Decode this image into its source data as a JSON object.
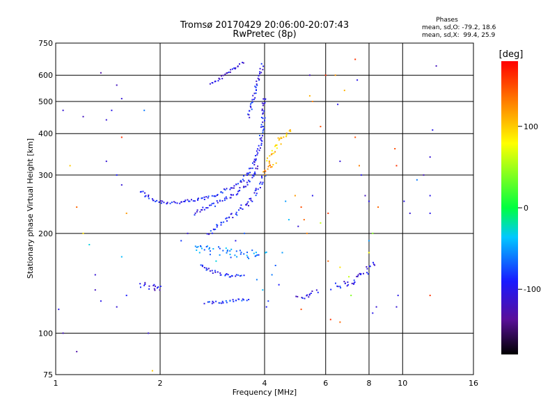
{
  "chart_data": {
    "type": "scatter",
    "title": "Tromsø 20170429 20:06:00-20:07:43",
    "subtitle": "RwPretec (8p)",
    "xlabel": "Frequency [MHz]",
    "ylabel": "Stationary phase Virtual Height [km]",
    "x_scale": "log",
    "y_scale": "log",
    "xlim": [
      1,
      16
    ],
    "ylim": [
      75,
      750
    ],
    "x_ticks": [
      1,
      2,
      4,
      6,
      8,
      10,
      16
    ],
    "x_tick_labels": [
      "1",
      "2",
      "4",
      "6",
      "8",
      "10",
      "16"
    ],
    "y_ticks": [
      75,
      100,
      200,
      300,
      400,
      500,
      600,
      750
    ],
    "y_tick_labels": [
      "75",
      "100",
      "200",
      "300",
      "400",
      "500",
      "600",
      "750"
    ],
    "grid": true,
    "phase_info": {
      "title": "Phases",
      "line_o": "mean, sd,O: -79.2, 18.6",
      "line_x": "mean, sd,X:  99.4, 25.9"
    },
    "colorbar": {
      "label": "[deg]",
      "range": [
        -180,
        180
      ],
      "ticks": [
        100,
        0,
        -100
      ],
      "tick_labels": [
        "100",
        "0",
        "-100"
      ]
    },
    "traces": [
      {
        "name": "",
        "segments": [
          [
            [
              1.75,
              268
            ],
            [
              1.85,
              257
            ],
            [
              1.95,
              250
            ],
            [
              2.1,
              248
            ],
            [
              2.3,
              248
            ],
            [
              2.5,
              251
            ],
            [
              2.7,
              256
            ],
            [
              2.9,
              262
            ],
            [
              3.1,
              270
            ],
            [
              3.3,
              280
            ],
            [
              3.5,
              295
            ],
            [
              3.7,
              320
            ],
            [
              3.85,
              355
            ],
            [
              3.95,
              420
            ],
            [
              4.0,
              520
            ]
          ]
        ],
        "phase": -95,
        "spread": 0.012
      },
      {
        "name": "",
        "segments": [
          [
            [
              2.75,
              200
            ],
            [
              2.95,
              212
            ],
            [
              3.15,
              222
            ],
            [
              3.35,
              232
            ],
            [
              3.55,
              245
            ],
            [
              3.75,
              262
            ],
            [
              3.9,
              285
            ],
            [
              4.0,
              300
            ]
          ]
        ],
        "phase": -90,
        "spread": 0.015
      },
      {
        "name": "",
        "segments": [
          [
            [
              2.5,
              230
            ],
            [
              2.8,
              242
            ],
            [
              3.1,
              255
            ],
            [
              3.4,
              270
            ],
            [
              3.65,
              290
            ],
            [
              3.85,
              320
            ]
          ]
        ],
        "phase": -100,
        "spread": 0.012
      },
      {
        "name": "",
        "segments": [
          [
            [
              2.8,
              565
            ],
            [
              3.0,
              590
            ],
            [
              3.2,
              620
            ],
            [
              3.35,
              640
            ],
            [
              3.5,
              660
            ]
          ]
        ],
        "phase": -100,
        "spread": 0.008
      },
      {
        "name": "",
        "segments": [
          [
            [
              3.6,
              450
            ],
            [
              3.7,
              500
            ],
            [
              3.8,
              560
            ],
            [
              3.9,
              610
            ],
            [
              3.95,
              650
            ]
          ]
        ],
        "phase": -95,
        "spread": 0.01
      },
      {
        "name": "",
        "segments": [
          [
            [
              4.05,
              320
            ],
            [
              4.2,
              350
            ],
            [
              4.4,
              380
            ],
            [
              4.6,
              400
            ],
            [
              4.8,
              410
            ]
          ]
        ],
        "phase": 100,
        "spread": 0.02
      },
      {
        "name": "",
        "segments": [
          [
            [
              4.0,
              300
            ],
            [
              4.1,
              315
            ],
            [
              4.3,
              330
            ]
          ]
        ],
        "phase": 125,
        "spread": 0.015
      },
      {
        "name": "",
        "segments": [
          [
            [
              2.6,
              160
            ],
            [
              2.9,
              152
            ],
            [
              3.2,
              148
            ],
            [
              3.5,
              150
            ]
          ]
        ],
        "phase": -90,
        "spread": 0.012
      },
      {
        "name": "",
        "segments": [
          [
            [
              2.7,
              123
            ],
            [
              3.0,
              124
            ],
            [
              3.3,
              126
            ],
            [
              3.6,
              127
            ]
          ]
        ],
        "phase": -85,
        "spread": 0.01
      },
      {
        "name": "",
        "segments": [
          [
            [
              1.75,
              140
            ],
            [
              1.9,
              138
            ],
            [
              2.05,
              136
            ]
          ]
        ],
        "phase": -105,
        "spread": 0.02
      },
      {
        "name": "",
        "segments": [
          [
            [
              5.0,
              128
            ],
            [
              5.3,
              130
            ],
            [
              5.7,
              134
            ]
          ]
        ],
        "phase": -100,
        "spread": 0.015
      },
      {
        "name": "",
        "segments": [
          [
            [
              6.3,
              138
            ],
            [
              6.7,
              140
            ],
            [
              7.2,
              142
            ],
            [
              7.6,
              148
            ],
            [
              8.0,
              158
            ],
            [
              8.3,
              165
            ]
          ]
        ],
        "phase": -100,
        "spread": 0.02
      },
      {
        "name": "",
        "segments": [
          [
            [
              2.5,
              180
            ],
            [
              2.8,
              178
            ],
            [
              3.2,
              175
            ],
            [
              3.6,
              172
            ],
            [
              4.0,
              178
            ]
          ]
        ],
        "phase": -60,
        "spread": 0.03
      }
    ],
    "scatter_points": [
      [
        1.05,
        470,
        -110
      ],
      [
        1.2,
        450,
        -120
      ],
      [
        1.35,
        610,
        -130
      ],
      [
        1.4,
        440,
        -110
      ],
      [
        1.45,
        470,
        -100
      ],
      [
        1.5,
        560,
        -120
      ],
      [
        1.55,
        510,
        -110
      ],
      [
        1.55,
        390,
        160
      ],
      [
        1.1,
        320,
        100
      ],
      [
        1.15,
        240,
        140
      ],
      [
        1.2,
        200,
        90
      ],
      [
        1.25,
        185,
        -30
      ],
      [
        1.3,
        150,
        -110
      ],
      [
        1.3,
        135,
        -120
      ],
      [
        1.35,
        125,
        -100
      ],
      [
        1.5,
        120,
        -110
      ],
      [
        1.6,
        130,
        -90
      ],
      [
        1.55,
        170,
        -40
      ],
      [
        1.6,
        230,
        120
      ],
      [
        1.8,
        470,
        -60
      ],
      [
        1.85,
        100,
        -110
      ],
      [
        1.05,
        100,
        -120
      ],
      [
        1.02,
        118,
        -100
      ],
      [
        1.15,
        88,
        -130
      ],
      [
        1.9,
        77,
        100
      ],
      [
        1.4,
        330,
        -110
      ],
      [
        1.5,
        300,
        -90
      ],
      [
        1.55,
        280,
        -110
      ],
      [
        5.4,
        600,
        -120
      ],
      [
        5.4,
        520,
        110
      ],
      [
        5.5,
        500,
        130
      ],
      [
        5.8,
        420,
        150
      ],
      [
        6.0,
        600,
        160
      ],
      [
        6.4,
        600,
        120
      ],
      [
        6.5,
        490,
        -100
      ],
      [
        6.6,
        330,
        -110
      ],
      [
        6.8,
        540,
        110
      ],
      [
        7.3,
        670,
        160
      ],
      [
        7.4,
        580,
        -100
      ],
      [
        7.3,
        390,
        150
      ],
      [
        7.5,
        320,
        130
      ],
      [
        7.6,
        300,
        -100
      ],
      [
        7.8,
        260,
        -120
      ],
      [
        8.0,
        250,
        -100
      ],
      [
        8.5,
        240,
        140
      ],
      [
        9.5,
        360,
        150
      ],
      [
        9.6,
        320,
        160
      ],
      [
        10.1,
        250,
        -100
      ],
      [
        10.5,
        230,
        -110
      ],
      [
        11.0,
        290,
        -60
      ],
      [
        11.5,
        300,
        -120
      ],
      [
        12.0,
        340,
        -110
      ],
      [
        12.0,
        260,
        -100
      ],
      [
        12.0,
        230,
        -100
      ],
      [
        12.0,
        130,
        160
      ],
      [
        12.5,
        640,
        -120
      ],
      [
        12.2,
        410,
        -100
      ],
      [
        4.6,
        250,
        -50
      ],
      [
        4.7,
        220,
        -40
      ],
      [
        4.9,
        260,
        120
      ],
      [
        5.1,
        240,
        150
      ],
      [
        5.2,
        220,
        140
      ],
      [
        5.3,
        200,
        130
      ],
      [
        5.0,
        210,
        -110
      ],
      [
        5.5,
        260,
        -100
      ],
      [
        5.8,
        215,
        60
      ],
      [
        6.1,
        230,
        160
      ],
      [
        8.0,
        190,
        -50
      ],
      [
        8.2,
        200,
        40
      ],
      [
        8.0,
        175,
        80
      ],
      [
        6.1,
        165,
        140
      ],
      [
        6.6,
        158,
        90
      ],
      [
        7.0,
        148,
        60
      ],
      [
        7.1,
        130,
        40
      ],
      [
        5.1,
        118,
        150
      ],
      [
        6.2,
        110,
        160
      ],
      [
        6.6,
        108,
        140
      ],
      [
        8.2,
        115,
        -100
      ],
      [
        8.4,
        120,
        -110
      ],
      [
        9.6,
        120,
        -110
      ],
      [
        9.7,
        130,
        -100
      ],
      [
        4.05,
        120,
        -90
      ],
      [
        4.1,
        125,
        -80
      ],
      [
        4.2,
        150,
        -60
      ],
      [
        4.3,
        160,
        -70
      ],
      [
        4.5,
        175,
        -50
      ],
      [
        4.4,
        140,
        -90
      ],
      [
        3.95,
        135,
        -40
      ],
      [
        3.8,
        145,
        -60
      ],
      [
        2.3,
        190,
        -80
      ],
      [
        2.4,
        200,
        -110
      ],
      [
        2.6,
        175,
        -40
      ],
      [
        2.9,
        165,
        -30
      ],
      [
        3.3,
        190,
        -100
      ],
      [
        3.5,
        200,
        -70
      ]
    ]
  }
}
